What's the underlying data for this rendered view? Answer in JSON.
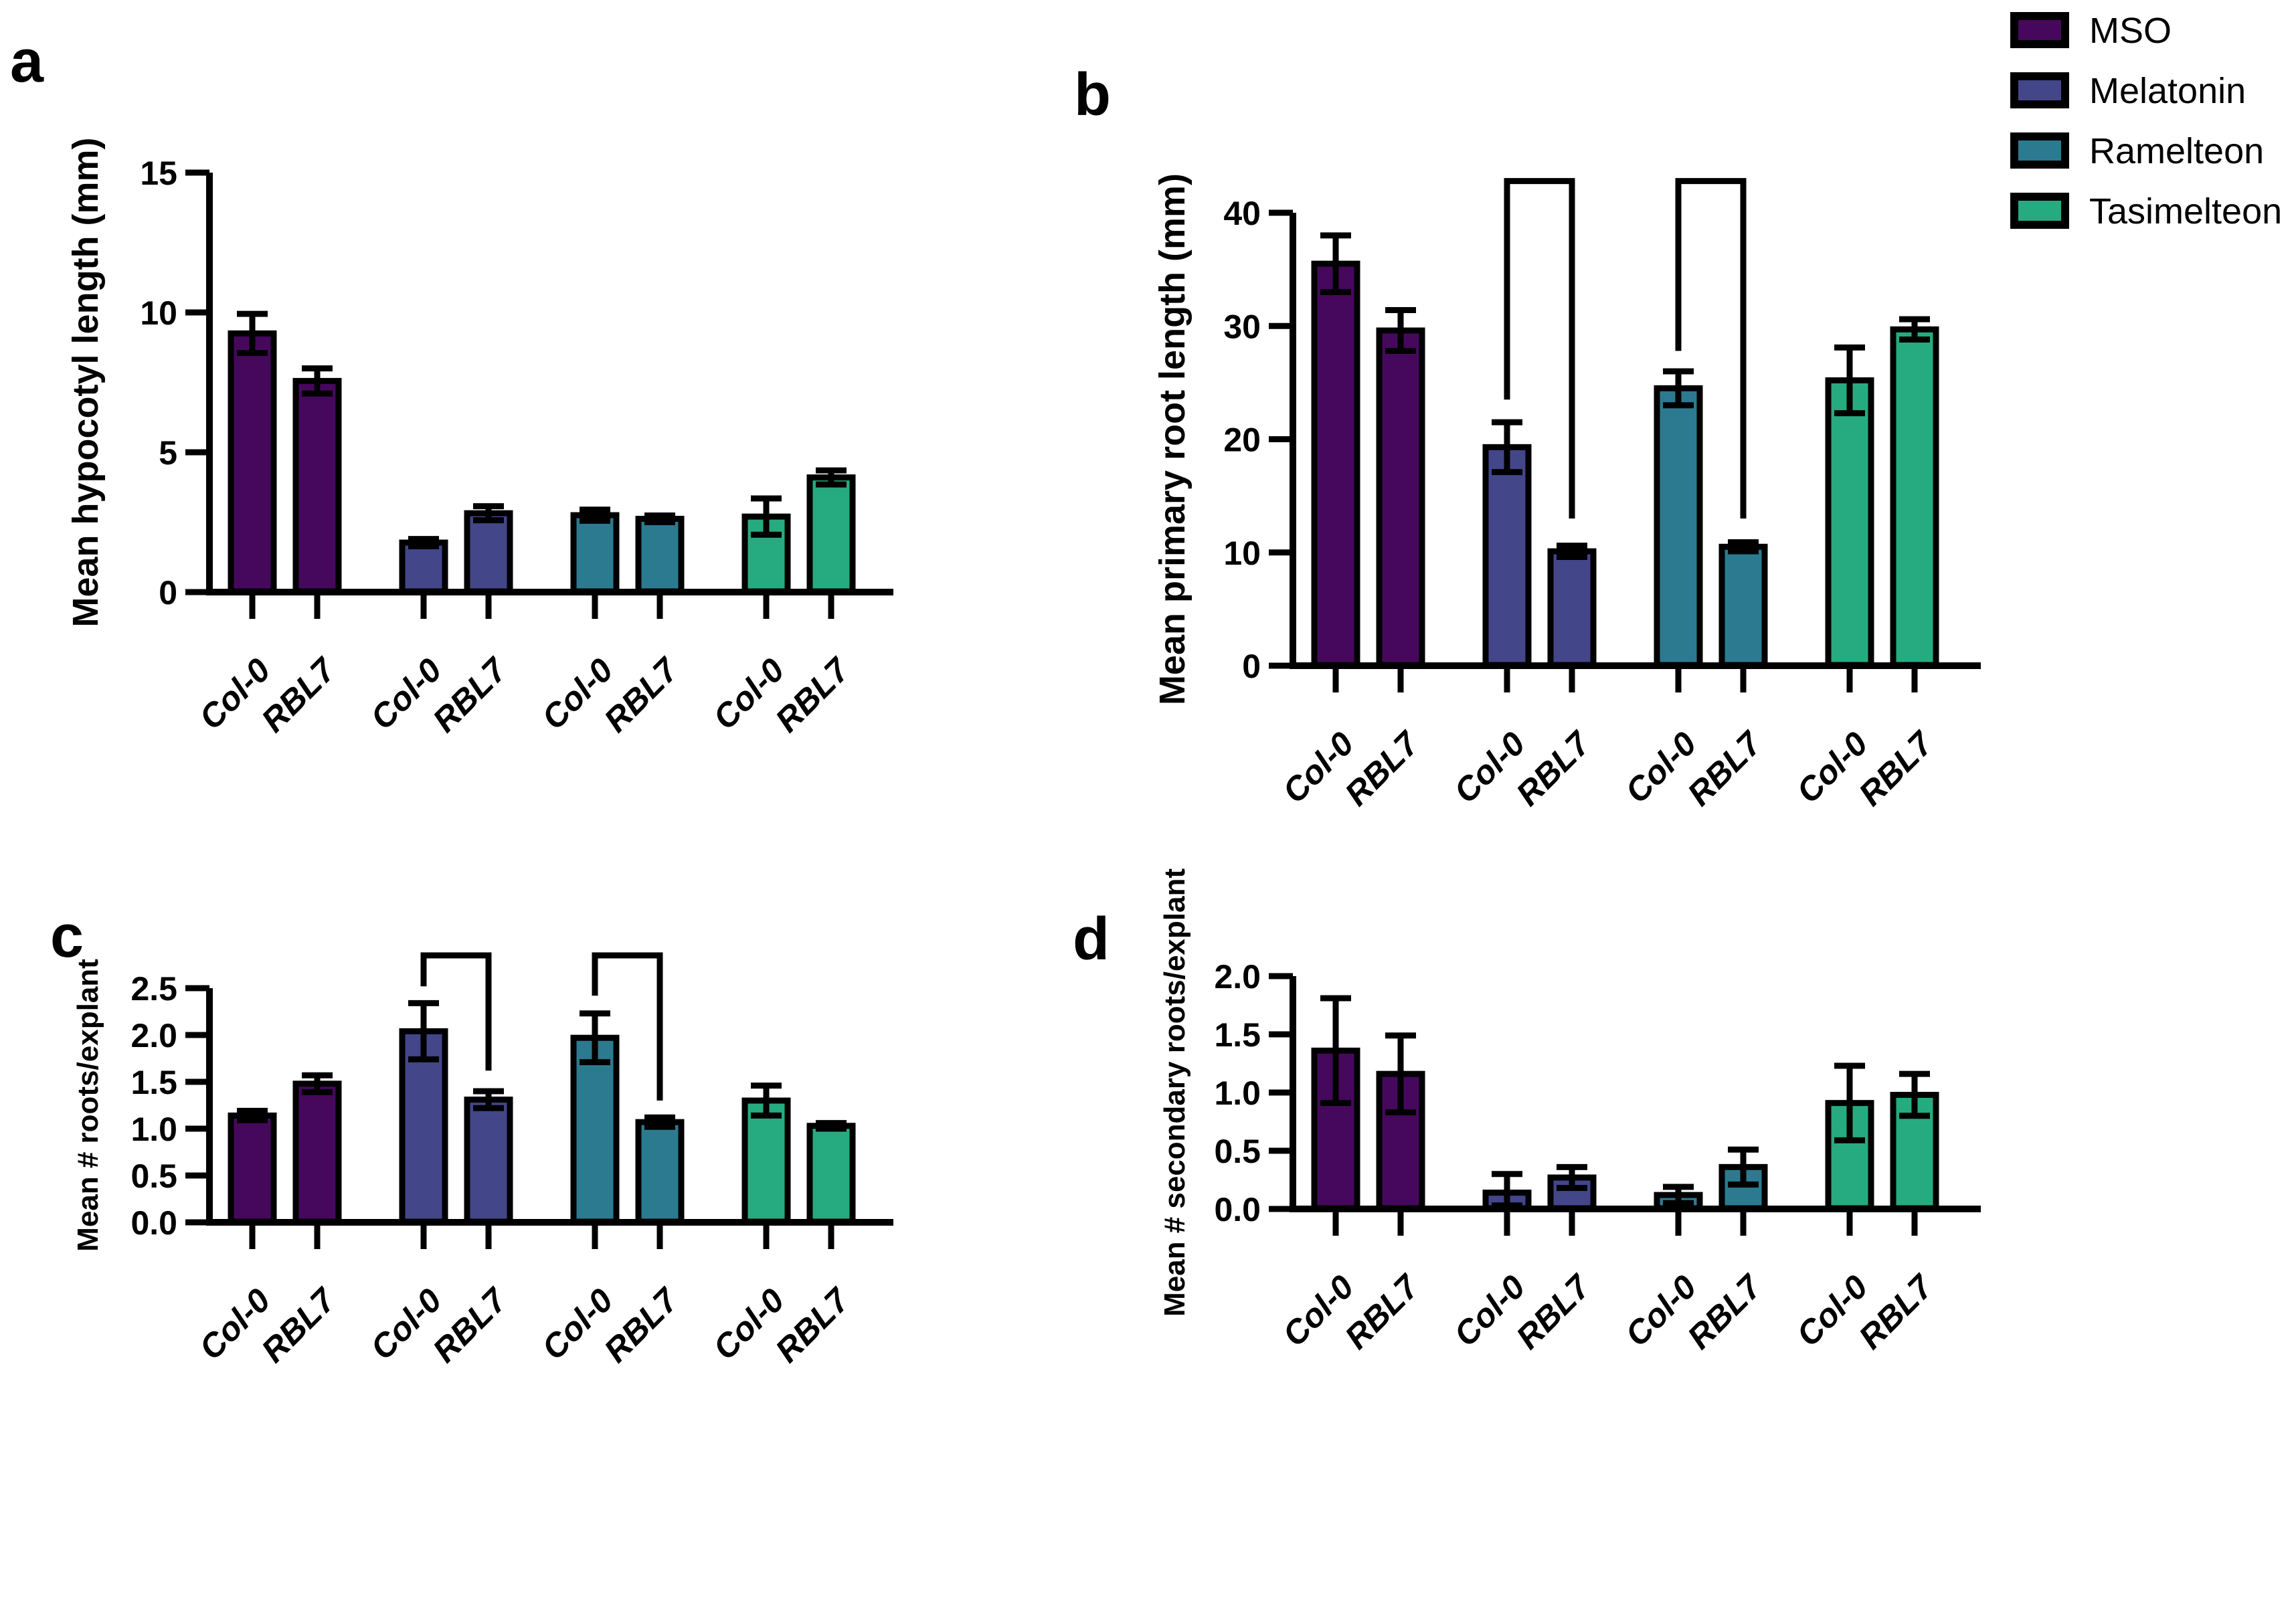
{
  "figure_background": "#ffffff",
  "genotypes": [
    "Col-0",
    "RBL7"
  ],
  "treatments": [
    {
      "name": "MSO",
      "color": "#46085C"
    },
    {
      "name": "Melatonin",
      "color": "#44468A"
    },
    {
      "name": "Ramelteon",
      "color": "#2C7A90"
    },
    {
      "name": "Tasimelteon",
      "color": "#26AB80"
    }
  ],
  "legend": {
    "position": "top-right",
    "items": [
      {
        "label": "MSO",
        "color": "#46085C"
      },
      {
        "label": "Melatonin",
        "color": "#44468A"
      },
      {
        "label": "Ramelteon",
        "color": "#2C7A90"
      },
      {
        "label": "Tasimelteon",
        "color": "#26AB80"
      }
    ]
  },
  "chart_data": [
    {
      "panel": "a",
      "type": "bar",
      "title": "",
      "ylabel": "Mean hypocotyl length (mm)",
      "xlabel": "",
      "ylim": [
        0,
        15
      ],
      "ytick_labels": [
        "0",
        "5",
        "10",
        "15"
      ],
      "grid": false,
      "categories": [
        "MSO Col-0",
        "MSO RBL7",
        "Melatonin Col-0",
        "Melatonin RBL7",
        "Ramelteon Col-0",
        "Ramelteon RBL7",
        "Tasimelteon Col-0",
        "Tasimelteon RBL7"
      ],
      "x_tick_labels": [
        "Col-0",
        "RBL7",
        "Col-0",
        "RBL7",
        "Col-0",
        "RBL7",
        "Col-0",
        "RBL7"
      ],
      "treatment_of_bar": [
        "MSO",
        "MSO",
        "Melatonin",
        "Melatonin",
        "Ramelteon",
        "Ramelteon",
        "Tasimelteon",
        "Tasimelteon"
      ],
      "values": [
        9.25,
        7.55,
        1.77,
        2.82,
        2.75,
        2.62,
        2.7,
        4.1
      ],
      "errors": [
        0.7,
        0.45,
        0.13,
        0.25,
        0.2,
        0.12,
        0.65,
        0.25
      ],
      "brackets": []
    },
    {
      "panel": "b",
      "type": "bar",
      "title": "",
      "ylabel": "Mean primary root length (mm)",
      "xlabel": "",
      "ylim": [
        0,
        40
      ],
      "ytick_labels": [
        "0",
        "10",
        "20",
        "30",
        "40"
      ],
      "grid": false,
      "categories": [
        "MSO Col-0",
        "MSO RBL7",
        "Melatonin Col-0",
        "Melatonin RBL7",
        "Ramelteon Col-0",
        "Ramelteon RBL7",
        "Tasimelteon Col-0",
        "Tasimelteon RBL7"
      ],
      "x_tick_labels": [
        "Col-0",
        "RBL7",
        "Col-0",
        "RBL7",
        "Col-0",
        "RBL7",
        "Col-0",
        "RBL7"
      ],
      "treatment_of_bar": [
        "MSO",
        "MSO",
        "Melatonin",
        "Melatonin",
        "Ramelteon",
        "Ramelteon",
        "Tasimelteon",
        "Tasimelteon"
      ],
      "values": [
        35.5,
        29.6,
        19.3,
        10.1,
        24.5,
        10.5,
        25.2,
        29.7
      ],
      "errors": [
        2.5,
        1.8,
        2.2,
        0.5,
        1.5,
        0.4,
        2.9,
        0.9
      ],
      "brackets": [
        {
          "bar1": 2,
          "bar2": 3,
          "top": 42.8,
          "drop1": 23.5,
          "drop2": 13.0
        },
        {
          "bar1": 4,
          "bar2": 5,
          "top": 42.8,
          "drop1": 27.8,
          "drop2": 13.0
        }
      ]
    },
    {
      "panel": "c",
      "type": "bar",
      "title": "",
      "ylabel": "Mean # roots/explant",
      "xlabel": "",
      "ylim": [
        0,
        2.5
      ],
      "ytick_labels": [
        "0.0",
        "0.5",
        "1.0",
        "1.5",
        "2.0",
        "2.5"
      ],
      "grid": false,
      "categories": [
        "MSO Col-0",
        "MSO RBL7",
        "Melatonin Col-0",
        "Melatonin RBL7",
        "Ramelteon Col-0",
        "Ramelteon RBL7",
        "Tasimelteon Col-0",
        "Tasimelteon RBL7"
      ],
      "x_tick_labels": [
        "Col-0",
        "RBL7",
        "Col-0",
        "RBL7",
        "Col-0",
        "RBL7",
        "Col-0",
        "RBL7"
      ],
      "treatment_of_bar": [
        "MSO",
        "MSO",
        "Melatonin",
        "Melatonin",
        "Ramelteon",
        "Ramelteon",
        "Tasimelteon",
        "Tasimelteon"
      ],
      "values": [
        1.14,
        1.48,
        2.04,
        1.31,
        1.97,
        1.07,
        1.3,
        1.03
      ],
      "errors": [
        0.05,
        0.09,
        0.3,
        0.09,
        0.26,
        0.05,
        0.16,
        0.03
      ],
      "brackets": [
        {
          "bar1": 2,
          "bar2": 3,
          "top": 2.85,
          "drop1": 2.52,
          "drop2": 1.62
        },
        {
          "bar1": 4,
          "bar2": 5,
          "top": 2.85,
          "drop1": 2.42,
          "drop2": 1.3
        }
      ]
    },
    {
      "panel": "d",
      "type": "bar",
      "title": "",
      "ylabel": "Mean # secondary roots/explant",
      "xlabel": "",
      "ylim": [
        0,
        2.0
      ],
      "ytick_labels": [
        "0.0",
        "0.5",
        "1.0",
        "1.5",
        "2.0"
      ],
      "grid": false,
      "categories": [
        "MSO Col-0",
        "MSO RBL7",
        "Melatonin Col-0",
        "Melatonin RBL7",
        "Ramelteon Col-0",
        "Ramelteon RBL7",
        "Tasimelteon Col-0",
        "Tasimelteon RBL7"
      ],
      "x_tick_labels": [
        "Col-0",
        "RBL7",
        "Col-0",
        "RBL7",
        "Col-0",
        "RBL7",
        "Col-0",
        "RBL7"
      ],
      "treatment_of_bar": [
        "MSO",
        "MSO",
        "Melatonin",
        "Melatonin",
        "Ramelteon",
        "Ramelteon",
        "Tasimelteon",
        "Tasimelteon"
      ],
      "values": [
        1.36,
        1.16,
        0.14,
        0.27,
        0.12,
        0.36,
        0.91,
        0.98
      ],
      "errors": [
        0.45,
        0.33,
        0.16,
        0.09,
        0.07,
        0.15,
        0.32,
        0.18
      ],
      "brackets": []
    }
  ]
}
